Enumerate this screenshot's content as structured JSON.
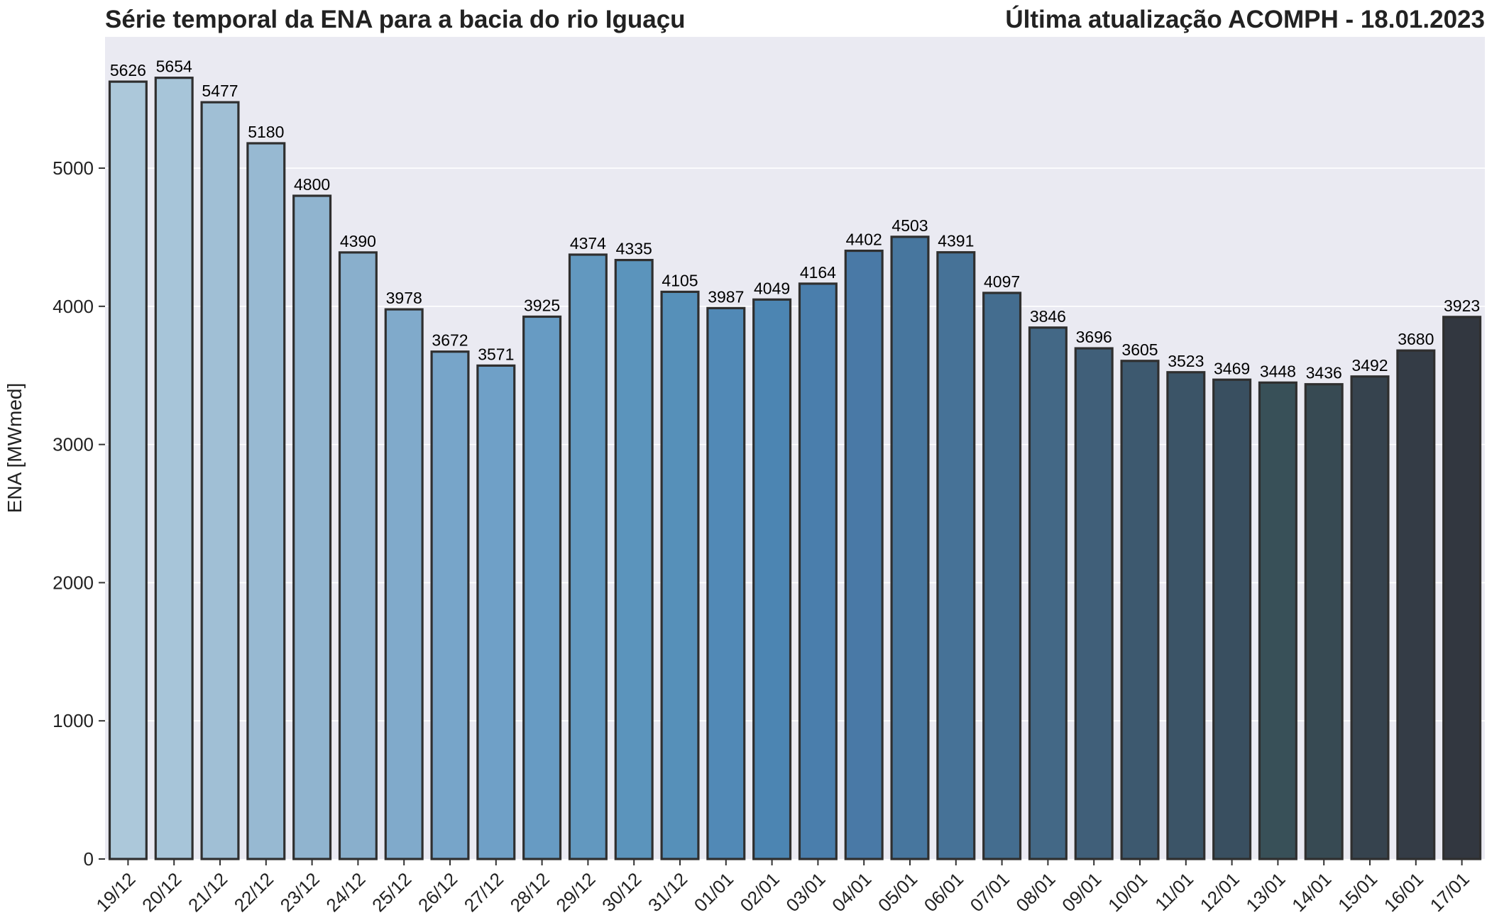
{
  "chart_data": {
    "type": "bar",
    "title": "Série temporal da ENA para a bacia do rio Iguaçu",
    "subtitle": "Última atualização ACOMPH - 18.01.2023",
    "xlabel": "",
    "ylabel": "ENA [MWmed]",
    "ylim": [
      0,
      5950
    ],
    "yticks": [
      0,
      1000,
      2000,
      3000,
      4000,
      5000
    ],
    "grid": true,
    "categories": [
      "19/12",
      "20/12",
      "21/12",
      "22/12",
      "23/12",
      "24/12",
      "25/12",
      "26/12",
      "27/12",
      "28/12",
      "29/12",
      "30/12",
      "31/12",
      "01/01",
      "02/01",
      "03/01",
      "04/01",
      "05/01",
      "06/01",
      "07/01",
      "08/01",
      "09/01",
      "10/01",
      "11/01",
      "12/01",
      "13/01",
      "14/01",
      "15/01",
      "16/01",
      "17/01"
    ],
    "values": [
      5626,
      5654,
      5477,
      5180,
      4800,
      4390,
      3978,
      3672,
      3571,
      3925,
      4374,
      4335,
      4105,
      3987,
      4049,
      4164,
      4402,
      4503,
      4391,
      4097,
      3846,
      3696,
      3605,
      3523,
      3469,
      3448,
      3436,
      3492,
      3680,
      3923
    ],
    "colors": {
      "background": "#eaeaf2",
      "grid": "#ffffff",
      "bar_edge": "#2f2f2f",
      "palette": [
        "#acc8da",
        "#a7c5d9",
        "#a0bfd5",
        "#97b9d2",
        "#90b4cf",
        "#89afcc",
        "#80aacb",
        "#77a5c9",
        "#6fa0c7",
        "#679bc3",
        "#6298bf",
        "#5b94bc",
        "#5690b9",
        "#5189b6",
        "#4c85b2",
        "#4a7eac",
        "#4979a6",
        "#47769e",
        "#467297",
        "#446d8f",
        "#436886",
        "#405f79",
        "#3d596f",
        "#3b5467",
        "#394f60",
        "#385058",
        "#374a53",
        "#36434e",
        "#343c46",
        "#323740"
      ]
    }
  }
}
